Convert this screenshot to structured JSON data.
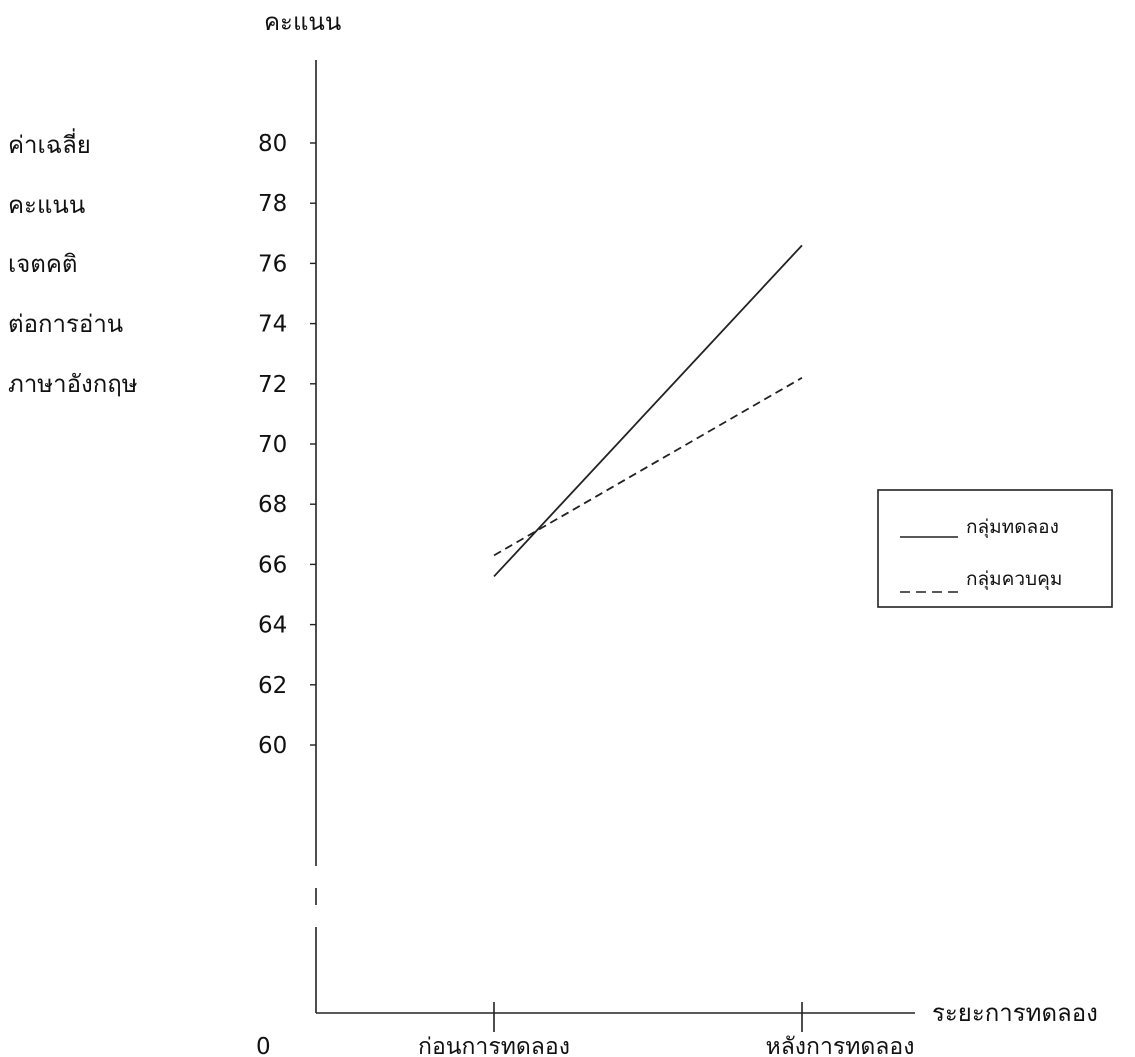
{
  "chart_data": {
    "type": "line",
    "y_top_label": "คะแนน",
    "y_side_label_lines": [
      "ค่าเฉลี่ย",
      "คะแนน",
      "เจตคติ",
      "ต่อการอ่าน",
      "ภาษาอังกฤษ"
    ],
    "xlabel": "ระยะการทดลอง",
    "origin_label": "0",
    "categories": [
      "ก่อนการทดลอง",
      "หลังการทดลอง"
    ],
    "y_ticks": [
      80,
      78,
      76,
      74,
      72,
      70,
      68,
      66,
      64,
      62,
      60
    ],
    "ylim": [
      60,
      80
    ],
    "axis_break": true,
    "series": [
      {
        "name": "กลุ่มทดลอง",
        "values": [
          65.6,
          76.6
        ],
        "line_style": "solid",
        "color": "#222222"
      },
      {
        "name": "กลุ่มควบคุม",
        "values": [
          66.3,
          72.2
        ],
        "line_style": "dashed",
        "color": "#222222"
      }
    ],
    "legend_position": "right",
    "grid": false
  }
}
